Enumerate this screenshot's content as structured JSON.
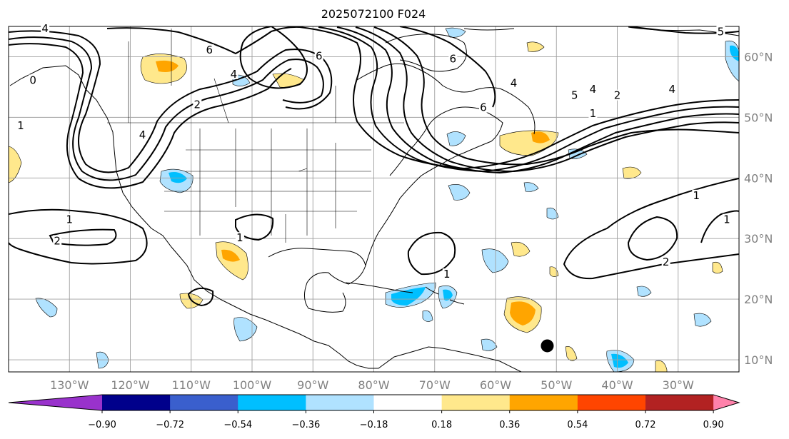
{
  "title": "2025072100 F024",
  "map": {
    "lon_range": [
      -140,
      -20
    ],
    "lat_range": [
      8,
      65
    ],
    "lat_labels": [
      {
        "lat": 60,
        "text": "60°N"
      },
      {
        "lat": 50,
        "text": "50°N"
      },
      {
        "lat": 40,
        "text": "40°N"
      },
      {
        "lat": 30,
        "text": "30°N"
      },
      {
        "lat": 20,
        "text": "20°N"
      },
      {
        "lat": 10,
        "text": "10°N"
      }
    ],
    "lon_labels": [
      {
        "lon": -130,
        "text": "130°W"
      },
      {
        "lon": -120,
        "text": "120°W"
      },
      {
        "lon": -110,
        "text": "110°W"
      },
      {
        "lon": -100,
        "text": "100°W"
      },
      {
        "lon": -90,
        "text": "90°W"
      },
      {
        "lon": -80,
        "text": "80°W"
      },
      {
        "lon": -70,
        "text": "70°W"
      },
      {
        "lon": -60,
        "text": "60°W"
      },
      {
        "lon": -50,
        "text": "50°W"
      },
      {
        "lon": -40,
        "text": "40°W"
      },
      {
        "lon": -30,
        "text": "30°W"
      }
    ],
    "gridlines": true,
    "marker": {
      "lon": -51.5,
      "lat": 12.3
    }
  },
  "contour_labels": [
    {
      "lon": -134,
      "lat": 64.5,
      "text": "4"
    },
    {
      "lon": -136,
      "lat": 56,
      "text": "0"
    },
    {
      "lon": -138,
      "lat": 48.5,
      "text": "1"
    },
    {
      "lon": -118,
      "lat": 47,
      "text": "4"
    },
    {
      "lon": -107,
      "lat": 61,
      "text": "6"
    },
    {
      "lon": -103,
      "lat": 57,
      "text": "4"
    },
    {
      "lon": -109,
      "lat": 52,
      "text": "2"
    },
    {
      "lon": -89,
      "lat": 60,
      "text": "6"
    },
    {
      "lon": -67,
      "lat": 59.5,
      "text": "6"
    },
    {
      "lon": -62,
      "lat": 51.5,
      "text": "6"
    },
    {
      "lon": -57,
      "lat": 55.5,
      "text": "4"
    },
    {
      "lon": -47,
      "lat": 53.5,
      "text": "5"
    },
    {
      "lon": -44,
      "lat": 54.5,
      "text": "4"
    },
    {
      "lon": -40,
      "lat": 53.5,
      "text": "2"
    },
    {
      "lon": -44,
      "lat": 50.5,
      "text": "1"
    },
    {
      "lon": -31,
      "lat": 54.5,
      "text": "4"
    },
    {
      "lon": -23,
      "lat": 64,
      "text": "5"
    },
    {
      "lon": -130,
      "lat": 33,
      "text": "1"
    },
    {
      "lon": -132,
      "lat": 29.5,
      "text": "2"
    },
    {
      "lon": -102,
      "lat": 30,
      "text": "1"
    },
    {
      "lon": -68,
      "lat": 24,
      "text": "1"
    },
    {
      "lon": -27,
      "lat": 37,
      "text": "1"
    },
    {
      "lon": -22,
      "lat": 33,
      "text": "1"
    },
    {
      "lon": -32,
      "lat": 26,
      "text": "2"
    }
  ],
  "colorbar": {
    "colors": [
      "#9932cc",
      "#00008b",
      "#3a5fcd",
      "#00bfff",
      "#b0e2ff",
      "#ffffff",
      "#ffe88c",
      "#ffa500",
      "#ff4500",
      "#b22222",
      "#ff82ab"
    ],
    "tick_labels": [
      "−0.90",
      "−0.72",
      "−0.54",
      "−0.36",
      "−0.18",
      "0.18",
      "0.36",
      "0.54",
      "0.72",
      "0.90"
    ]
  }
}
